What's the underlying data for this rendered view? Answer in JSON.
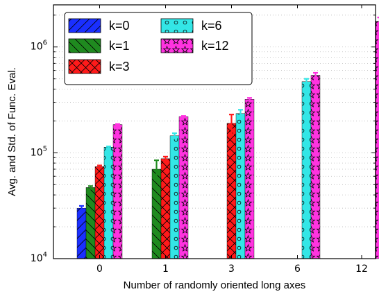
{
  "chart_data": {
    "type": "bar",
    "xlabel": "Number of randomly oriented long axes",
    "ylabel": "Avg. and Std. of Func. Eval.",
    "yscale": "log",
    "ylim": [
      10000,
      2500000
    ],
    "ytick_labels": [
      {
        "value": 10000,
        "base": "10",
        "exp": "4"
      },
      {
        "value": 100000,
        "base": "10",
        "exp": "5"
      },
      {
        "value": 1000000,
        "base": "10",
        "exp": "6"
      }
    ],
    "categories": [
      "0",
      "1",
      "3",
      "6",
      "12"
    ],
    "grid": "horizontal dotted",
    "legend_position": "top-left",
    "series": [
      {
        "name": "k=0",
        "color": "#1a2fff",
        "pattern": "diagonal",
        "values": [
          30000,
          null,
          null,
          null,
          null
        ],
        "errors": [
          1500,
          null,
          null,
          null,
          null
        ]
      },
      {
        "name": "k=1",
        "color": "#1f8a1f",
        "pattern": "back-diagonal",
        "values": [
          47000,
          70000,
          null,
          null,
          null
        ],
        "errors": [
          1500,
          15000,
          null,
          null,
          null
        ]
      },
      {
        "name": "k=3",
        "color": "#ff1a1a",
        "pattern": "crosshatch",
        "values": [
          74000,
          88000,
          190000,
          null,
          null
        ],
        "errors": [
          2000,
          4000,
          40000,
          null,
          null
        ]
      },
      {
        "name": "k=6",
        "color": "#33e6e6",
        "pattern": "circles",
        "values": [
          113000,
          145000,
          235000,
          470000,
          null
        ],
        "errors": [
          2000,
          8000,
          20000,
          30000,
          null
        ]
      },
      {
        "name": "k=12",
        "color": "#ff33e0",
        "pattern": "stars",
        "values": [
          185000,
          220000,
          320000,
          540000,
          1750000
        ],
        "errors": [
          2000,
          3000,
          10000,
          30000,
          150000
        ]
      }
    ]
  }
}
